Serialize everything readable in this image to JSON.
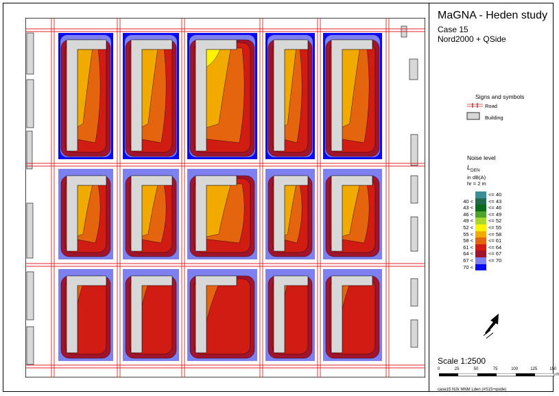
{
  "map": {
    "title": "MaGNA - Heden study",
    "case": "Case 15",
    "method": "Nord2000 + QSide",
    "footer": "case15 N2k MNM Lden (#S15+qside)"
  },
  "signs": {
    "heading": "Signs and symbols",
    "road_label": "Road",
    "building_label": "Building"
  },
  "legend": {
    "heading": "Noise level",
    "quantity_main": "L",
    "quantity_sub": "DEN",
    "unit_line": "in dB(A)",
    "height_line": "hr = 2 m",
    "classes": [
      {
        "label": "<= 40",
        "color": "#3a8f96"
      },
      {
        "label": "40 <   <= 43",
        "color": "#1f6b4a"
      },
      {
        "label": "43 <   <= 46",
        "color": "#0c6a1c"
      },
      {
        "label": "46 <   <= 49",
        "color": "#4aa42a"
      },
      {
        "label": "49 <   <= 52",
        "color": "#a8d62a"
      },
      {
        "label": "52 <   <= 55",
        "color": "#fff200"
      },
      {
        "label": "55 <   <= 58",
        "color": "#f0aa00"
      },
      {
        "label": "58 <   <= 61",
        "color": "#e5650f"
      },
      {
        "label": "61 <   <= 64",
        "color": "#d01c12"
      },
      {
        "label": "64 <   <= 67",
        "color": "#a0142d"
      },
      {
        "label": "67 <   <= 70",
        "color": "#7f80ef"
      },
      {
        "label": "70 <",
        "color": "#0a0af5"
      }
    ]
  },
  "scale": {
    "label": "Scale 1:2500",
    "ticks": [
      "0",
      "25",
      "50",
      "75",
      "100",
      "125",
      "150"
    ],
    "unit": "m"
  },
  "north_arrow": {
    "icon": "north-arrow-icon"
  }
}
